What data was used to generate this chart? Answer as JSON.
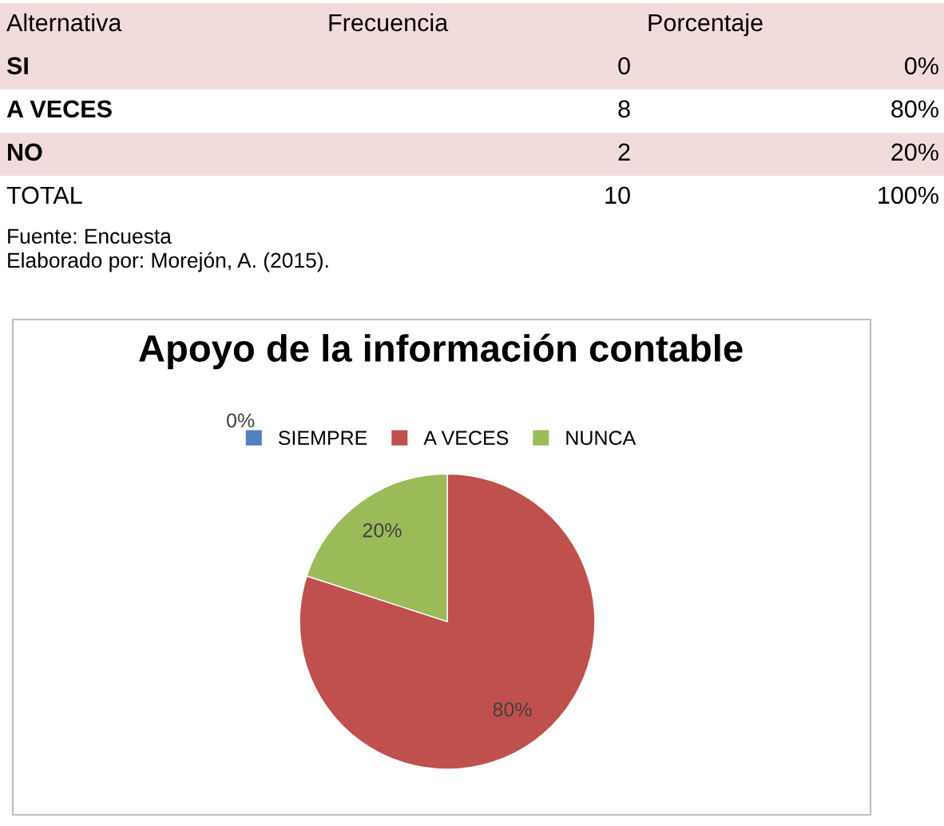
{
  "chart_data": [
    {
      "type": "other",
      "annotations": [
        "Alternativa",
        "Frecuencia",
        "Porcentaje",
        "SI",
        "0",
        "0%",
        "A VECES",
        "8",
        "80%",
        "NO",
        "2",
        "20%",
        "TOTAL",
        "10",
        "100%",
        "Fuente: Encuesta",
        "Elaborado por: Morejón, A. (2015)."
      ]
    },
    {
      "type": "pie",
      "title": "Apoyo de la información contable",
      "categories": [
        "SIEMPRE",
        "A VECES",
        "NUNCA"
      ],
      "values": [
        0,
        80,
        20
      ],
      "colors": [
        "#4f81bd",
        "#c0504d",
        "#9bbb59"
      ],
      "value_labels": [
        "0%",
        "80%",
        "20%"
      ],
      "legend": "top"
    }
  ]
}
